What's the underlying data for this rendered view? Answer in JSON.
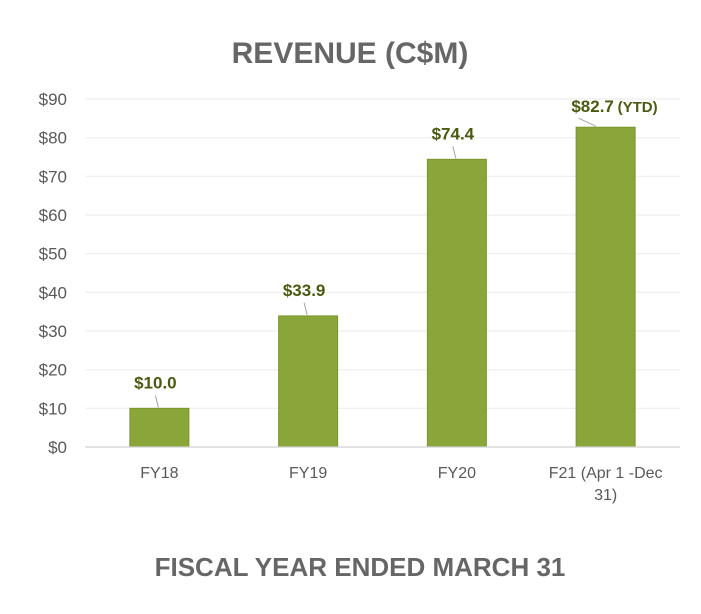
{
  "chart_data": {
    "type": "bar",
    "title": "REVENUE (C$M)",
    "xlabel": "FISCAL YEAR ENDED MARCH 31",
    "ylabel": "",
    "categories": [
      "FY18",
      "FY19",
      "FY20",
      "F21 (Apr 1 -Dec 31)"
    ],
    "category_lines": [
      [
        "FY18"
      ],
      [
        "FY19"
      ],
      [
        "FY20"
      ],
      [
        "F21 (Apr 1 -Dec",
        "31)"
      ]
    ],
    "values": [
      10.0,
      33.9,
      74.4,
      82.7
    ],
    "data_labels": [
      "$10.0",
      "$33.9",
      "$74.4",
      "$82.7"
    ],
    "annotation": "(YTD)",
    "ylim": [
      0,
      90
    ],
    "yticks": [
      0,
      10,
      20,
      30,
      40,
      50,
      60,
      70,
      80,
      90
    ],
    "ytick_labels": [
      "$0",
      "$10",
      "$20",
      "$30",
      "$40",
      "$50",
      "$60",
      "$70",
      "$80",
      "$90"
    ],
    "grid": true,
    "legend": "none",
    "colors": {
      "bar": "#8aa538",
      "bar_edge": "#7a9530",
      "grid": "#eeeeee",
      "axis": "#d0d0d0",
      "label": "#4a5a10",
      "title": "#666666"
    }
  }
}
